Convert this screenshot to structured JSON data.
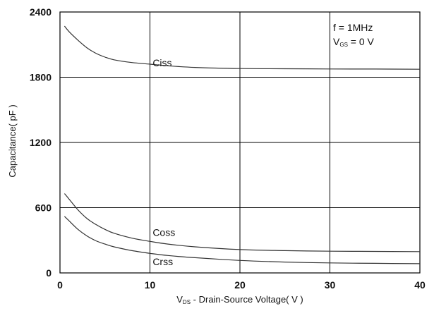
{
  "chart_data": {
    "type": "line",
    "title": "",
    "xlabel": {
      "prefix": "V",
      "sub": "DS",
      "rest": " - Drain-Source Voltage( V )"
    },
    "ylabel": "Capacitance( pF )",
    "xlim": [
      0,
      40
    ],
    "ylim": [
      0,
      2400
    ],
    "xticks": [
      0,
      10,
      20,
      30,
      40
    ],
    "yticks": [
      0,
      600,
      1200,
      1800,
      2400
    ],
    "grid": true,
    "annotations": {
      "freq": "f  =  1MHz",
      "vgs": {
        "prefix": "V",
        "sub": "GS",
        "rest": " = 0 V"
      }
    },
    "series": [
      {
        "name": "Ciss",
        "label_at": [
          10.3,
          1900
        ],
        "x": [
          0.5,
          1,
          2,
          3,
          4,
          5,
          6,
          8,
          10,
          12,
          15,
          20,
          25,
          30,
          35,
          40
        ],
        "y": [
          2270,
          2220,
          2140,
          2070,
          2020,
          1985,
          1960,
          1935,
          1920,
          1905,
          1890,
          1880,
          1878,
          1876,
          1875,
          1873
        ]
      },
      {
        "name": "Coss",
        "label_at": [
          10.3,
          340
        ],
        "x": [
          0.5,
          1,
          2,
          3,
          4,
          5,
          6,
          8,
          10,
          12,
          15,
          20,
          25,
          30,
          35,
          40
        ],
        "y": [
          730,
          680,
          580,
          500,
          445,
          400,
          365,
          320,
          290,
          265,
          240,
          215,
          205,
          200,
          198,
          196
        ]
      },
      {
        "name": "Crss",
        "label_at": [
          10.3,
          70
        ],
        "x": [
          0.5,
          1,
          2,
          3,
          4,
          5,
          6,
          8,
          10,
          12,
          15,
          20,
          25,
          30,
          35,
          40
        ],
        "y": [
          520,
          480,
          400,
          340,
          295,
          265,
          240,
          205,
          180,
          160,
          140,
          115,
          100,
          92,
          88,
          85
        ]
      }
    ]
  }
}
